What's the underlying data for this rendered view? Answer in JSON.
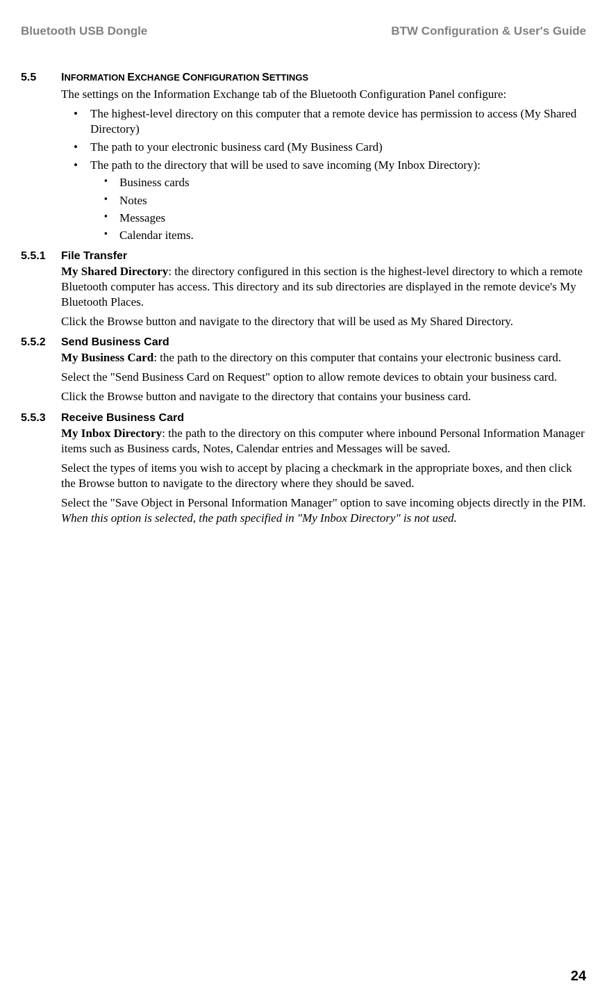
{
  "header": {
    "left": "Bluetooth USB Dongle",
    "right": "BTW Configuration & User's Guide"
  },
  "section": {
    "num": "5.5",
    "title_parts": {
      "p1": "I",
      "p2": "NFORMATION ",
      "p3": "E",
      "p4": "XCHANGE ",
      "p5": "C",
      "p6": "ONFIGURATION ",
      "p7": "S",
      "p8": "ETTINGS"
    },
    "intro": "The settings on the Information Exchange tab of the Bluetooth Configuration Panel configure:",
    "bullets": [
      "The highest-level directory on this computer that a remote device has permission to access (My Shared Directory)",
      "The path to your electronic business card (My Business Card)",
      "The path to the directory that will be used to save incoming (My Inbox Directory):"
    ],
    "sub_bullets": [
      "Business cards",
      "Notes",
      "Messages",
      "Calendar items."
    ]
  },
  "s551": {
    "num": "5.5.1",
    "title": "File Transfer",
    "p1_bold": "My Shared Directory",
    "p1_rest": ": the directory configured in this section is the highest-level directory to which a remote Bluetooth computer has access. This directory and its sub directories are displayed in the remote device's My Bluetooth Places.",
    "p2": "Click the Browse button and navigate to the directory that will be used as My Shared Directory."
  },
  "s552": {
    "num": "5.5.2",
    "title": "Send Business Card",
    "p1_bold": "My Business Card",
    "p1_rest": ": the path to the directory on this computer that contains your electronic business card.",
    "p2": "Select the \"Send Business Card on Request\" option to allow remote devices to obtain your business card.",
    "p3": "Click the Browse button and navigate to the directory that contains your business card."
  },
  "s553": {
    "num": "5.5.3",
    "title": "Receive Business Card",
    "p1_bold": "My Inbox Directory",
    "p1_rest": ": the path to the directory on this computer where inbound Personal Information Manager items such as Business cards, Notes, Calendar entries and Messages will be saved.",
    "p2": "Select the types of items you wish to accept by placing a checkmark in the appropriate boxes, and then click the Browse button to navigate to the directory where they should be saved.",
    "p3a": "Select the \"Save Object in Personal Information Manager\" option to save incoming objects directly in the PIM. ",
    "p3b_italic": "When this option is selected, the path specified in \"My Inbox Directory\" is not used."
  },
  "page_number": "24"
}
